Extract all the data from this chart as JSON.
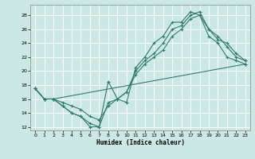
{
  "xlabel": "Humidex (Indice chaleur)",
  "bg_color": "#cce8e5",
  "grid_color": "#ffffff",
  "line_color": "#2e7d6e",
  "xlim": [
    -0.5,
    23.5
  ],
  "ylim": [
    11.5,
    29.5
  ],
  "xticks": [
    0,
    1,
    2,
    3,
    4,
    5,
    6,
    7,
    8,
    9,
    10,
    11,
    12,
    13,
    14,
    15,
    16,
    17,
    18,
    19,
    20,
    21,
    22,
    23
  ],
  "yticks": [
    12,
    14,
    16,
    18,
    20,
    22,
    24,
    26,
    28
  ],
  "series": [
    {
      "x": [
        0,
        1,
        2,
        3,
        4,
        5,
        6,
        7,
        8,
        9,
        10,
        11,
        12,
        13,
        14,
        15,
        16,
        17,
        18,
        19,
        20,
        21,
        22,
        23
      ],
      "y": [
        17.5,
        16,
        16,
        15,
        14,
        13.5,
        12,
        12,
        18.5,
        16,
        15.5,
        20.5,
        22,
        24,
        25,
        27,
        27,
        28.5,
        28,
        25,
        24,
        22,
        21.5,
        21
      ]
    },
    {
      "x": [
        0,
        1,
        2,
        3,
        4,
        5,
        6,
        7,
        8,
        9,
        10,
        11,
        12,
        13,
        14,
        15,
        16,
        17,
        18,
        19,
        20,
        21,
        22,
        23
      ],
      "y": [
        17.5,
        16,
        16,
        15,
        14,
        13.5,
        12.5,
        12,
        15.5,
        16,
        17,
        20,
        21.5,
        22.5,
        24,
        26,
        26.5,
        28,
        28.5,
        26,
        24.5,
        24,
        22.5,
        21.5
      ]
    },
    {
      "x": [
        0,
        1,
        2,
        3,
        4,
        5,
        6,
        7,
        8,
        9,
        10,
        11,
        12,
        13,
        14,
        15,
        16,
        17,
        18,
        19,
        20,
        21,
        22,
        23
      ],
      "y": [
        17.5,
        16,
        16,
        15.5,
        15,
        14.5,
        13.5,
        13,
        15,
        16,
        17,
        19.5,
        21,
        22,
        23,
        25,
        26,
        27.5,
        28,
        26,
        25,
        23.5,
        22,
        21.5
      ]
    },
    {
      "x": [
        0,
        1,
        2,
        23
      ],
      "y": [
        17.5,
        16,
        16,
        21
      ]
    }
  ]
}
